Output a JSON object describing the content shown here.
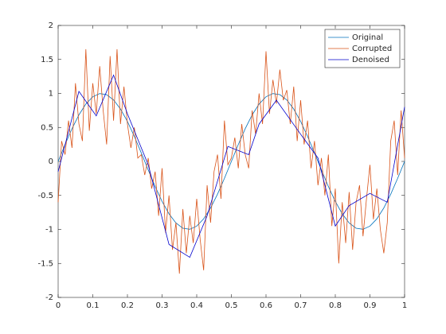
{
  "chart_data": {
    "type": "line",
    "xlim": [
      0,
      1
    ],
    "ylim": [
      -2,
      2
    ],
    "xticks": [
      0,
      0.1,
      0.2,
      0.3,
      0.4,
      0.5,
      0.6,
      0.7,
      0.8,
      0.9,
      1
    ],
    "yticks": [
      -2,
      -1.5,
      -1,
      -0.5,
      0,
      0.5,
      1,
      1.5,
      2
    ],
    "grid": false,
    "legend": "northeast",
    "series": [
      {
        "name": "Original",
        "color": "#0072bd",
        "x": [
          0,
          0.02,
          0.04,
          0.06,
          0.08,
          0.1,
          0.12,
          0.14,
          0.16,
          0.18,
          0.2,
          0.22,
          0.24,
          0.26,
          0.28,
          0.3,
          0.32,
          0.34,
          0.36,
          0.38,
          0.4,
          0.42,
          0.44,
          0.46,
          0.48,
          0.5,
          0.52,
          0.54,
          0.56,
          0.58,
          0.6,
          0.62,
          0.64,
          0.66,
          0.68,
          0.7,
          0.72,
          0.74,
          0.76,
          0.78,
          0.8,
          0.82,
          0.84,
          0.86,
          0.88,
          0.9,
          0.92,
          0.94,
          0.96,
          0.98,
          1
        ],
        "values": [
          0,
          0.2487,
          0.4818,
          0.6845,
          0.8443,
          0.9511,
          0.998,
          0.9823,
          0.9048,
          0.7705,
          0.5878,
          0.3681,
          0.1253,
          -0.1253,
          -0.3681,
          -0.5878,
          -0.7705,
          -0.9048,
          -0.9823,
          -0.998,
          -0.9511,
          -0.8443,
          -0.6845,
          -0.4818,
          -0.2487,
          0,
          0.2487,
          0.4818,
          0.6845,
          0.8443,
          0.9511,
          0.998,
          0.9823,
          0.9048,
          0.7705,
          0.5878,
          0.3681,
          0.1253,
          -0.1253,
          -0.3681,
          -0.5878,
          -0.7705,
          -0.9048,
          -0.9823,
          -0.998,
          -0.9511,
          -0.8443,
          -0.6845,
          -0.4818,
          -0.2487,
          0
        ]
      },
      {
        "name": "Corrupted",
        "color": "#d95319",
        "x": [
          0,
          0.01,
          0.02,
          0.03,
          0.04,
          0.05,
          0.06,
          0.07,
          0.08,
          0.09,
          0.1,
          0.11,
          0.12,
          0.13,
          0.14,
          0.15,
          0.16,
          0.17,
          0.18,
          0.19,
          0.2,
          0.21,
          0.22,
          0.23,
          0.24,
          0.25,
          0.26,
          0.27,
          0.28,
          0.29,
          0.3,
          0.31,
          0.32,
          0.33,
          0.34,
          0.35,
          0.36,
          0.37,
          0.38,
          0.39,
          0.4,
          0.41,
          0.42,
          0.43,
          0.44,
          0.45,
          0.46,
          0.47,
          0.48,
          0.49,
          0.5,
          0.51,
          0.52,
          0.53,
          0.54,
          0.55,
          0.56,
          0.57,
          0.58,
          0.59,
          0.6,
          0.61,
          0.62,
          0.63,
          0.64,
          0.65,
          0.66,
          0.67,
          0.68,
          0.69,
          0.7,
          0.71,
          0.72,
          0.73,
          0.74,
          0.75,
          0.76,
          0.77,
          0.78,
          0.79,
          0.8,
          0.81,
          0.82,
          0.83,
          0.84,
          0.85,
          0.86,
          0.87,
          0.88,
          0.89,
          0.9,
          0.91,
          0.92,
          0.93,
          0.94,
          0.95,
          0.96,
          0.97,
          0.98,
          0.99,
          1
        ],
        "values": [
          -0.6,
          0.3,
          0.1,
          0.6,
          0.2,
          1.15,
          0.55,
          0.3,
          1.65,
          0.45,
          1.15,
          0.7,
          1.4,
          0.75,
          0.25,
          1.55,
          0.6,
          1.65,
          0.55,
          1.1,
          0.55,
          0.2,
          0.5,
          0.05,
          0.1,
          -0.2,
          0.05,
          -0.4,
          -0.15,
          -0.8,
          -0.1,
          -1.05,
          -0.5,
          -1.3,
          -0.9,
          -1.65,
          -0.7,
          -1.35,
          -0.8,
          -1.2,
          -0.55,
          -1.15,
          -1.6,
          -0.35,
          -0.9,
          -0.15,
          0.1,
          -0.55,
          0.6,
          -0.05,
          0.05,
          0.35,
          -0.1,
          0.55,
          0.1,
          -0.1,
          0.75,
          0.4,
          1,
          0.55,
          1.62,
          0.7,
          1.2,
          0.85,
          1.35,
          0.9,
          1.05,
          0.55,
          1.1,
          0.3,
          0.9,
          0.25,
          0.6,
          -0.1,
          0.3,
          -0.35,
          0.05,
          -0.5,
          0.1,
          -0.95,
          -0.4,
          -1.5,
          -0.6,
          -1.2,
          -0.45,
          -1.3,
          -0.6,
          -0.35,
          -1.1,
          -0.55,
          -0.05,
          -0.85,
          -0.4,
          -1,
          -1.35,
          -0.9,
          0.3,
          0.6,
          -0.2,
          0.75,
          0.05
        ]
      },
      {
        "name": "Denoised",
        "color": "#0000cd",
        "x": [
          0,
          0.06,
          0.11,
          0.16,
          0.2,
          0.26,
          0.32,
          0.38,
          0.43,
          0.49,
          0.55,
          0.58,
          0.63,
          0.7,
          0.75,
          0.8,
          0.84,
          0.9,
          0.95,
          1
        ],
        "values": [
          -0.15,
          1.03,
          0.67,
          1.27,
          0.7,
          -0.05,
          -1.22,
          -1.41,
          -0.8,
          0.22,
          0.1,
          0.55,
          0.9,
          0.4,
          0.05,
          -0.95,
          -0.65,
          -0.47,
          -0.6,
          0.8
        ]
      }
    ]
  }
}
